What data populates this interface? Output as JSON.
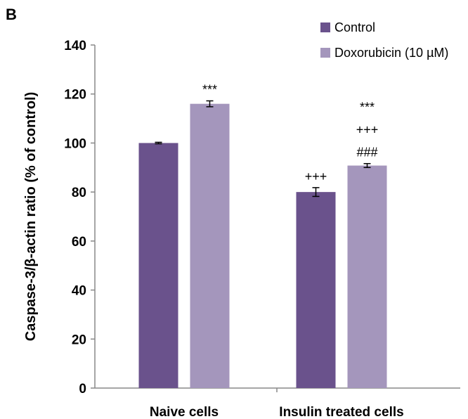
{
  "panel_label": "B",
  "chart_data": {
    "type": "bar",
    "title": "",
    "xlabel": "",
    "ylabel": "Caspase-3/β-actin ratio (% of control)",
    "ylim": [
      0,
      140
    ],
    "yticks": [
      0,
      20,
      40,
      60,
      80,
      100,
      120,
      140
    ],
    "grid": false,
    "legend_position": "top-right",
    "categories": [
      "Naive cells",
      "Insulin treated cells"
    ],
    "series": [
      {
        "name": "Control",
        "color": "#6a528c",
        "values": [
          100,
          80
        ],
        "errors": [
          0.3,
          1.8
        ]
      },
      {
        "name": "Doxorubicin (10 µM)",
        "color": "#a496bc",
        "values": [
          116,
          90.8
        ],
        "errors": [
          1.2,
          0.8
        ]
      }
    ],
    "annotations": [
      {
        "category": 0,
        "series": 1,
        "lines": [
          "***"
        ]
      },
      {
        "category": 1,
        "series": 0,
        "lines": [
          "+++"
        ]
      },
      {
        "category": 1,
        "series": 1,
        "lines": [
          "***",
          "+++",
          "###"
        ]
      }
    ]
  }
}
